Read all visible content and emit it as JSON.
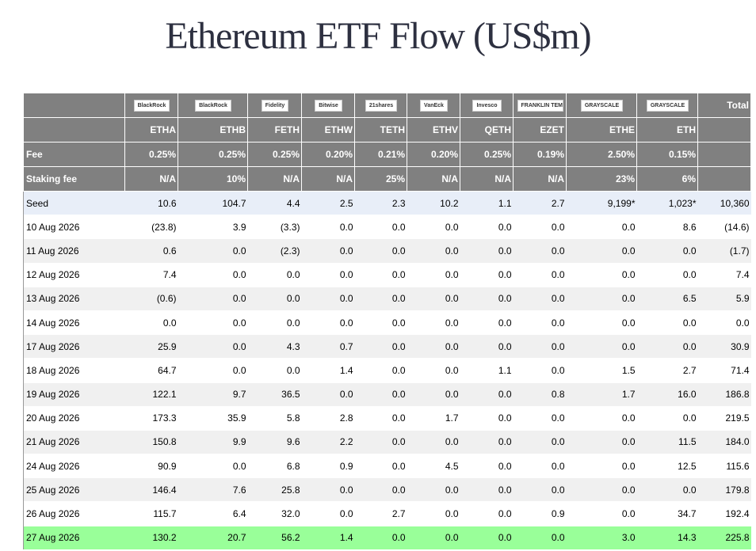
{
  "header": {
    "title": "Ethereum ETF Flow (US$m)"
  },
  "table": {
    "header_rows": [
      [
        null,
        "BlackRock",
        "BlackRock",
        "Fidelity",
        "Bitwise",
        "21shares",
        "VanEck",
        "Invesco",
        "FRANKLIN TEMPLETON",
        "GRAYSCALE",
        "GRAYSCALE",
        "Total"
      ],
      [
        null,
        "ETHA",
        "ETHB",
        "FETH",
        "ETHW",
        "TETH",
        "ETHV",
        "QETH",
        "EZET",
        "ETHE",
        "ETH",
        null
      ],
      [
        "Fee",
        "0.25%",
        "0.25%",
        "0.25%",
        "0.20%",
        "0.21%",
        "0.20%",
        "0.25%",
        "0.19%",
        "2.50%",
        "0.15%",
        null
      ],
      [
        "Staking fee",
        "N/A",
        "10%",
        "N/A",
        "N/A",
        "25%",
        "N/A",
        "N/A",
        "N/A",
        "23%",
        "6%",
        null
      ]
    ],
    "rows": [
      [
        "Seed",
        "10.6",
        "104.7",
        "4.4",
        "2.5",
        "2.3",
        "10.2",
        "1.1",
        "2.7",
        "9,199*",
        "1,023*",
        "10,360"
      ],
      [
        "10 Aug 2026",
        "(23.8)",
        "3.9",
        "(3.3)",
        "0.0",
        "0.0",
        "0.0",
        "0.0",
        "0.0",
        "0.0",
        "8.6",
        "(14.6)"
      ],
      [
        "11 Aug 2026",
        "0.6",
        "0.0",
        "(2.3)",
        "0.0",
        "0.0",
        "0.0",
        "0.0",
        "0.0",
        "0.0",
        "0.0",
        "(1.7)"
      ],
      [
        "12 Aug 2026",
        "7.4",
        "0.0",
        "0.0",
        "0.0",
        "0.0",
        "0.0",
        "0.0",
        "0.0",
        "0.0",
        "0.0",
        "7.4"
      ],
      [
        "13 Aug 2026",
        "(0.6)",
        "0.0",
        "0.0",
        "0.0",
        "0.0",
        "0.0",
        "0.0",
        "0.0",
        "0.0",
        "6.5",
        "5.9"
      ],
      [
        "14 Aug 2026",
        "0.0",
        "0.0",
        "0.0",
        "0.0",
        "0.0",
        "0.0",
        "0.0",
        "0.0",
        "0.0",
        "0.0",
        "0.0"
      ],
      [
        "17 Aug 2026",
        "25.9",
        "0.0",
        "4.3",
        "0.7",
        "0.0",
        "0.0",
        "0.0",
        "0.0",
        "0.0",
        "0.0",
        "30.9"
      ],
      [
        "18 Aug 2026",
        "64.7",
        "0.0",
        "0.0",
        "1.4",
        "0.0",
        "0.0",
        "1.1",
        "0.0",
        "1.5",
        "2.7",
        "71.4"
      ],
      [
        "19 Aug 2026",
        "122.1",
        "9.7",
        "36.5",
        "0.0",
        "0.0",
        "0.0",
        "0.0",
        "0.8",
        "1.7",
        "16.0",
        "186.8"
      ],
      [
        "20 Aug 2026",
        "173.3",
        "35.9",
        "5.8",
        "2.8",
        "0.0",
        "1.7",
        "0.0",
        "0.0",
        "0.0",
        "0.0",
        "219.5"
      ],
      [
        "21 Aug 2026",
        "150.8",
        "9.9",
        "9.6",
        "2.2",
        "0.0",
        "0.0",
        "0.0",
        "0.0",
        "0.0",
        "11.5",
        "184.0"
      ],
      [
        "24 Aug 2026",
        "90.9",
        "0.0",
        "6.8",
        "0.9",
        "0.0",
        "4.5",
        "0.0",
        "0.0",
        "0.0",
        "12.5",
        "115.6"
      ],
      [
        "25 Aug 2026",
        "146.4",
        "7.6",
        "25.8",
        "0.0",
        "0.0",
        "0.0",
        "0.0",
        "0.0",
        "0.0",
        "0.0",
        "179.8"
      ],
      [
        "26 Aug 2026",
        "115.7",
        "6.4",
        "32.0",
        "0.0",
        "2.7",
        "0.0",
        "0.0",
        "0.9",
        "0.0",
        "34.7",
        "192.4"
      ],
      [
        "27 Aug 2026",
        "130.2",
        "20.7",
        "56.2",
        "1.4",
        "0.0",
        "0.0",
        "0.0",
        "0.0",
        "3.0",
        "14.3",
        "225.8"
      ]
    ]
  }
}
